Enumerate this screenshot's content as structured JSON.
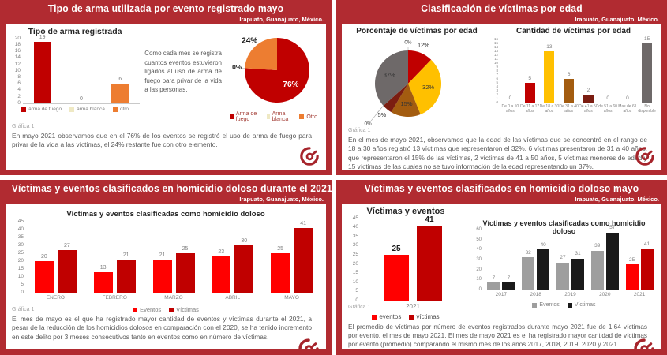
{
  "brand": {
    "band_red": "#B12B31",
    "logo_red": "#A6242B",
    "bright_red": "#FF0000",
    "dark_red": "#C00000",
    "orange": "#ED7D31",
    "gold": "#FFC000"
  },
  "slides": [
    {
      "title": "Tipo de arma utilizada por evento registrado mayo",
      "location": "Irapuato, Guanajuato, México.",
      "note": "Como cada mes se registra cuantos eventos estuvieron ligados al uso de arma de fuego para privar de la vida a las personas.",
      "grafica": "Gráfica 1",
      "caption": "En mayo 2021 observamos que en el 76% de los eventos se registró el uso de arma de fuego para privar de la vida a las víctimas, el 24% restante fue con otro elemento."
    },
    {
      "title": "Clasificación de víctimas por edad",
      "location": "Irapuato, Guanajuato, México.",
      "grafica": "Gráfica 1",
      "caption": "En el mes de mayo 2021, observamos que la edad de las víctimas que se concentró en el rango de 18 a 30 años registró 13 víctimas que representaron el 32%, 6 víctimas presentaron de 31 a 40 años, que representaron el 15% de las víctimas, 2 víctimas de 41 a 50 años, 5 víctimas menores de edad y 15 víctimas de las cuales no se tuvo información de la edad representando un 37%."
    },
    {
      "title": "Víctimas  y eventos clasificados en homicidio doloso durante el 2021",
      "location": "Irapuato, Guanajuato, México.",
      "grafica": "Gráfica 1",
      "caption": "El mes de mayo es el que ha registrado mayor cantidad de eventos y víctimas durante el 2021, a pesar de la reducción de los homicidios dolosos en comparación con el 2020, se ha tenido incremento en este delito por 3 meses consecutivos tanto en eventos como en número de víctimas."
    },
    {
      "title": "Víctimas  y eventos clasificados en homicidio doloso mayo",
      "location": "Irapuato, Guanajuato, México.",
      "grafica": "Gráfica 1",
      "caption": "El promedio de víctimas por número de eventos registrados durante mayo 2021 fue de 1.64 víctimas por evento, el mes de mayo 2021.  El mes de mayo 2021 es el ha registrado mayor cantidad de víctimas por evento (promedio) comparando el mismo mes de los años 2017, 2018, 2019, 2020 y 2021."
    }
  ],
  "chart_data": [
    {
      "type": "bar",
      "title": "Tipo de arma registrada",
      "categories": [
        "arma de fuego",
        "arma blanca",
        "otro"
      ],
      "values": [
        19,
        0,
        6
      ],
      "colors": [
        "#C00000",
        "#EFE9C4",
        "#ED7D31"
      ],
      "ylim": [
        0,
        20
      ],
      "ystep": 2,
      "legend_position": "bottom"
    },
    {
      "type": "pie",
      "labels": [
        "Arma de fuego",
        "Arma blanca",
        "Otro"
      ],
      "values": [
        76,
        0,
        24
      ],
      "pct_labels": [
        "76%",
        "0%",
        "24%"
      ],
      "pct_pos": [
        "in",
        "out",
        "out"
      ],
      "pct_colors": [
        "#FFFFFF",
        "#1A1A1A",
        "#1A1A1A"
      ],
      "colors": [
        "#C00000",
        "#EFE9C4",
        "#ED7D31"
      ],
      "legend_position": "bottom"
    },
    {
      "type": "pie",
      "title": "Porcentaje de víctimas por edad",
      "labels": [
        "De 0 a 10 años",
        "De 11 a 17 años",
        "De 18 a 30 años",
        "De 31 a 40 años",
        "De 41 a 50 años",
        "de 51 a 60 años",
        "Mas de 61 años",
        "No disponible"
      ],
      "values": [
        0,
        5,
        13,
        6,
        2,
        0,
        0,
        15
      ],
      "pct_labels": [
        "0%",
        "12%",
        "32%",
        "15%",
        "5%",
        "0%",
        "0%",
        "37%"
      ],
      "pct_pos": [
        "out",
        "out",
        "in",
        "in",
        "out",
        "out",
        "out",
        "in"
      ],
      "pct_colors": [
        "#333333",
        "#333333",
        "#333333",
        "#333333",
        "#333333",
        "#333333",
        "#333333",
        "#333333"
      ],
      "colors": [
        "#C00000",
        "#C00000",
        "#FFC000",
        "#A35C10",
        "#7B1D11",
        "#6E6969",
        "#6E6969",
        "#6E6969"
      ]
    },
    {
      "type": "bar",
      "title": "Cantidad de víctimas por edad",
      "categories": [
        "De 0 a 10 años",
        "De 11 a 17 años",
        "De 18 a 30 años",
        "De 31 a 40 años",
        "De 41 a 50 años",
        "de 51 a 60 años",
        "Mas de 61 años",
        "No disponible"
      ],
      "values": [
        0,
        5,
        13,
        6,
        2,
        0,
        0,
        15
      ],
      "colors": [
        "#C00000",
        "#C00000",
        "#FFC000",
        "#A35C10",
        "#7B1D11",
        "#6E6969",
        "#6E6969",
        "#6E6969"
      ],
      "ylim": [
        0,
        16
      ],
      "ystep": 1
    },
    {
      "type": "grouped-bar",
      "title": "Víctimas y eventos clasificadas como homicidio doloso",
      "categories": [
        "ENERO",
        "FEBRERO",
        "MARZO",
        "ABRIL",
        "MAYO"
      ],
      "series": [
        {
          "name": "Eventos",
          "color": "#FF0000",
          "values": [
            20,
            13,
            21,
            23,
            25
          ]
        },
        {
          "name": "Víctimas",
          "color": "#C00000",
          "values": [
            27,
            21,
            25,
            30,
            41
          ]
        }
      ],
      "ylim": [
        0,
        45
      ],
      "ystep": 5,
      "legend_position": "bottom"
    },
    {
      "type": "grouped-bar",
      "title": "Víctimas y eventos",
      "categories": [
        "2021"
      ],
      "series": [
        {
          "name": "eventos",
          "color": "#FF0000",
          "values": [
            25
          ]
        },
        {
          "name": "víctimas",
          "color": "#C00000",
          "values": [
            41
          ]
        }
      ],
      "ylim": [
        0,
        45
      ],
      "ystep": 5,
      "legend_position": "bottom"
    },
    {
      "type": "grouped-bar",
      "title": "Víctimas y eventos clasificadas como homicidio doloso",
      "categories": [
        "2017",
        "2018",
        "2019",
        "2020",
        "2021"
      ],
      "series": [
        {
          "name": "Eventos",
          "color": "#9E9E9E",
          "values": [
            7,
            32,
            27,
            39,
            25
          ]
        },
        {
          "name": "Víctimas",
          "color": "#1A1A1A",
          "values": [
            7,
            40,
            31,
            57,
            41
          ]
        }
      ],
      "highlight": {
        "index": 4,
        "colors": [
          "#FF0000",
          "#C00000"
        ]
      },
      "ylim": [
        0,
        60
      ],
      "ystep": 10,
      "legend_position": "bottom"
    }
  ]
}
